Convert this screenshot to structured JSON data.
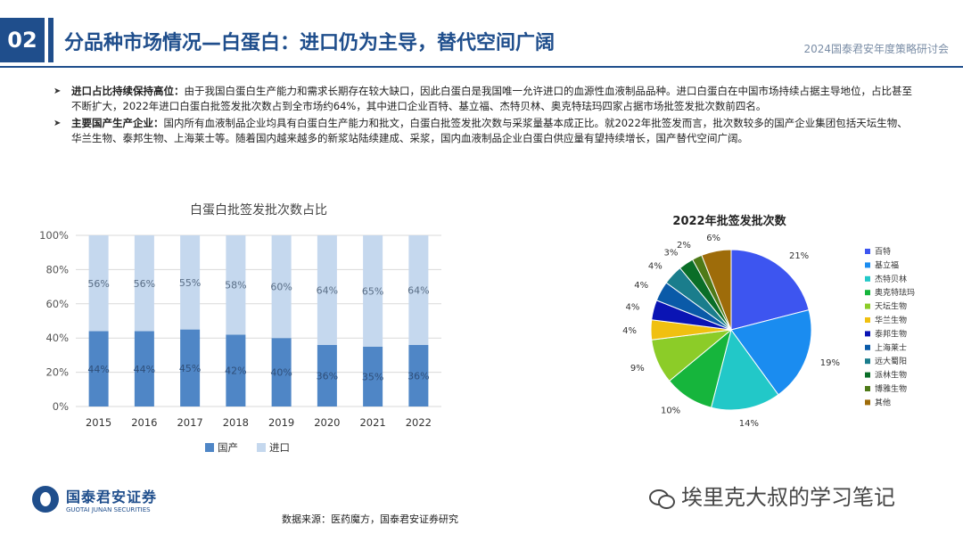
{
  "header": {
    "section_number": "02",
    "title": "分品种市场情况—白蛋白：进口仍为主导，替代空间广阔",
    "conference": "2024国泰君安年度策略研讨会"
  },
  "bullets": [
    {
      "lead": "进口占比持续保持高位：",
      "text": "由于我国白蛋白生产能力和需求长期存在较大缺口，因此白蛋白是我国唯一允许进口的血源性血液制品品种。进口白蛋白在中国市场持续占据主导地位，占比甚至不断扩大，2022年进口白蛋白批签发批次数占到全市场约64%，其中进口企业百特、基立福、杰特贝林、奥克特珐玛四家占据市场批签发批次数前四名。"
    },
    {
      "lead": "主要国产生产企业：",
      "text": "国内所有血液制品企业均具有白蛋白生产能力和批文，白蛋白批签发批次数与采浆量基本成正比。就2022年批签发而言，批次数较多的国产企业集团包括天坛生物、华兰生物、泰邦生物、上海莱士等。随着国内越来越多的新浆站陆续建成、采浆，国内血液制品企业白蛋白供应量有望持续增长，国产替代空间广阔。"
    }
  ],
  "chart_data": [
    {
      "type": "bar",
      "stacked": true,
      "title": "白蛋白批签发批次数占比",
      "categories": [
        "2015",
        "2016",
        "2017",
        "2018",
        "2019",
        "2020",
        "2021",
        "2022"
      ],
      "series": [
        {
          "name": "国产",
          "color": "#4f86c6",
          "values": [
            44,
            44,
            45,
            42,
            40,
            36,
            35,
            36
          ]
        },
        {
          "name": "进口",
          "color": "#c5d8ee",
          "values": [
            56,
            56,
            55,
            58,
            60,
            64,
            65,
            64
          ]
        }
      ],
      "yticks": [
        "0%",
        "20%",
        "40%",
        "60%",
        "80%",
        "100%"
      ],
      "ylim": [
        0,
        100
      ],
      "legend": "bottom",
      "grid": true
    },
    {
      "type": "pie",
      "title": "2022年批签发批次数",
      "slices": [
        {
          "name": "百特",
          "value": 21,
          "label": "21%",
          "color": "#3d55f0"
        },
        {
          "name": "基立福",
          "value": 19,
          "label": "19%",
          "color": "#1a8cf0"
        },
        {
          "name": "杰特贝林",
          "value": 14,
          "label": "14%",
          "color": "#22c8c8"
        },
        {
          "name": "奥克特珐玛",
          "value": 10,
          "label": "10%",
          "color": "#16b53c"
        },
        {
          "name": "天坛生物",
          "value": 9,
          "label": "9%",
          "color": "#8ccc28"
        },
        {
          "name": "华兰生物",
          "value": 4,
          "label": "4%",
          "color": "#f0c010"
        },
        {
          "name": "泰邦生物",
          "value": 4,
          "label": "4%",
          "color": "#0a14b4"
        },
        {
          "name": "上海莱士",
          "value": 4,
          "label": "4%",
          "color": "#0a5aa8"
        },
        {
          "name": "远大蜀阳",
          "value": 4,
          "label": "4%",
          "color": "#1a7d8c"
        },
        {
          "name": "派林生物",
          "value": 3,
          "label": "3%",
          "color": "#0a6e28"
        },
        {
          "name": "博雅生物",
          "value": 2,
          "label": "2%",
          "color": "#4e7a18"
        },
        {
          "name": "其他",
          "value": 6,
          "label": "6%",
          "color": "#9e6c0a"
        }
      ],
      "legend": "right"
    }
  ],
  "footer": {
    "logo_cn": "国泰君安证券",
    "logo_en": "GUOTAI JUNAN SECURITIES",
    "source": "数据来源：医药魔方，国泰君安证券研究",
    "watermark": "埃里克大叔的学习笔记"
  }
}
